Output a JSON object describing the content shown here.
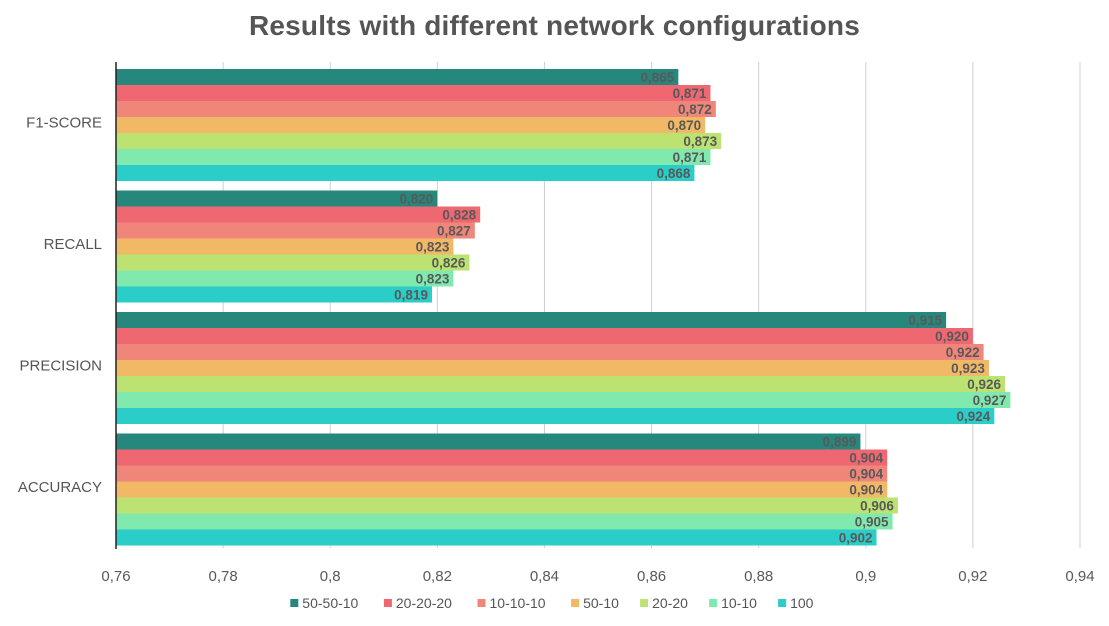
{
  "chart_data": {
    "type": "bar",
    "orientation": "horizontal",
    "title": "Results with different network configurations",
    "xlabel": "",
    "ylabel": "",
    "xlim": [
      0.76,
      0.94
    ],
    "xticks": [
      "0,76",
      "0,78",
      "0,8",
      "0,82",
      "0,84",
      "0,86",
      "0,88",
      "0,9",
      "0,92",
      "0,94"
    ],
    "xtick_values": [
      0.76,
      0.78,
      0.8,
      0.82,
      0.84,
      0.86,
      0.88,
      0.9,
      0.92,
      0.94
    ],
    "grid": "vertical",
    "legend_position": "bottom",
    "categories": [
      "F1-SCORE",
      "RECALL",
      "PRECISION",
      "ACCURACY"
    ],
    "series": [
      {
        "name": "50-50-10",
        "color": "#26877D",
        "values": [
          0.865,
          0.82,
          0.915,
          0.899
        ],
        "labels": [
          "0,865",
          "0,820",
          "0,915",
          "0,899"
        ]
      },
      {
        "name": "20-20-20",
        "color": "#EE6771",
        "values": [
          0.871,
          0.828,
          0.92,
          0.904
        ],
        "labels": [
          "0,871",
          "0,828",
          "0,920",
          "0,904"
        ]
      },
      {
        "name": "10-10-10",
        "color": "#F0867A",
        "values": [
          0.872,
          0.827,
          0.922,
          0.904
        ],
        "labels": [
          "0,872",
          "0,827",
          "0,922",
          "0,904"
        ]
      },
      {
        "name": "50-10",
        "color": "#F1B866",
        "values": [
          0.87,
          0.823,
          0.923,
          0.904
        ],
        "labels": [
          "0,870",
          "0,823",
          "0,923",
          "0,904"
        ]
      },
      {
        "name": "20-20",
        "color": "#BCE271",
        "values": [
          0.873,
          0.826,
          0.926,
          0.906
        ],
        "labels": [
          "0,873",
          "0,826",
          "0,926",
          "0,906"
        ]
      },
      {
        "name": "10-10",
        "color": "#80E9AE",
        "values": [
          0.871,
          0.823,
          0.927,
          0.905
        ],
        "labels": [
          "0,871",
          "0,823",
          "0,927",
          "0,905"
        ]
      },
      {
        "name": "100",
        "color": "#2ACDC8",
        "values": [
          0.868,
          0.819,
          0.924,
          0.902
        ],
        "labels": [
          "0,868",
          "0,819",
          "0,924",
          "0,902"
        ]
      }
    ]
  }
}
